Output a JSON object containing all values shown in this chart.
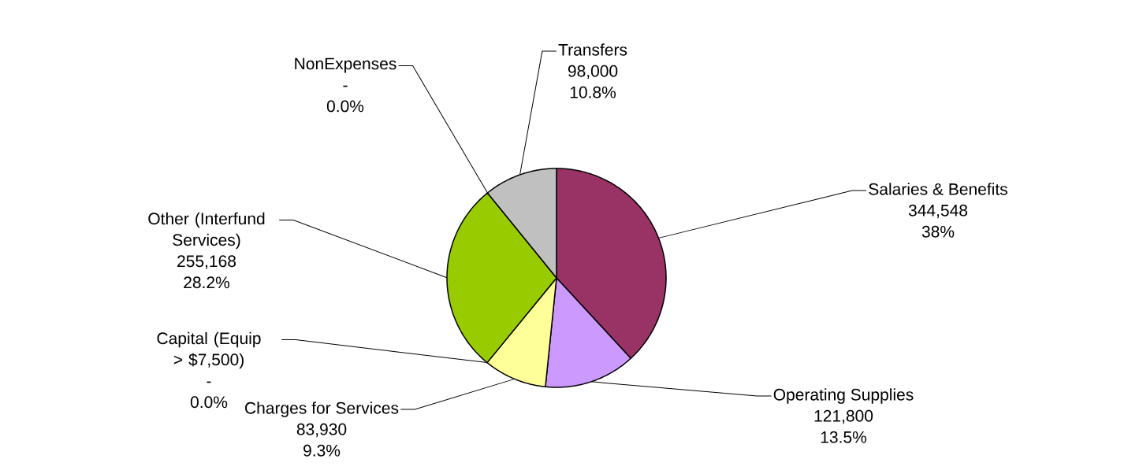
{
  "chart_data": {
    "type": "pie",
    "categories": [
      "Salaries & Benefits",
      "Operating Supplies",
      "Charges for Services",
      "Capital (Equip > $7,500)",
      "Other (Interfund Services)",
      "NonExpenses",
      "Transfers"
    ],
    "values": [
      344548,
      121800,
      83930,
      0,
      255168,
      0,
      98000
    ],
    "colors": [
      "#993366",
      "#cc99ff",
      "#ffff99",
      "#ccffff",
      "#99cc00",
      "#ff8080",
      "#c0c0c0"
    ],
    "value_labels": [
      "344,548",
      "121,800",
      "83,930",
      "-",
      "255,168",
      "-",
      "98,000"
    ],
    "annotations": [
      "38%",
      "13.5%",
      "9.3%",
      "0.0%",
      "28.2%",
      "0.0%",
      "10.8%"
    ]
  }
}
